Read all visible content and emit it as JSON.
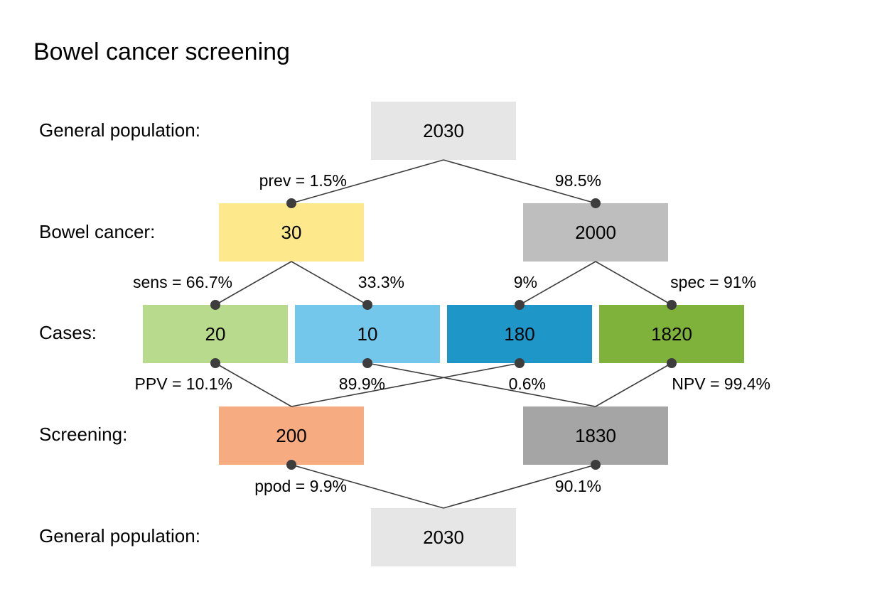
{
  "title": "Bowel cancer screening",
  "row_labels": {
    "general_population_top": "General population:",
    "bowel_cancer": "Bowel cancer:",
    "cases": "Cases:",
    "screening": "Screening:",
    "general_population_bottom": "General population:"
  },
  "boxes": {
    "population_top": {
      "value": "2030",
      "color": "#e6e6e6"
    },
    "cancer_yes": {
      "value": "30",
      "color": "#fde98b"
    },
    "cancer_no": {
      "value": "2000",
      "color": "#bebebe"
    },
    "case_hit": {
      "value": "20",
      "color": "#b8da8c"
    },
    "case_miss": {
      "value": "10",
      "color": "#72c7ea"
    },
    "case_false_alarm": {
      "value": "180",
      "color": "#1e96c8"
    },
    "case_correct_rejection": {
      "value": "1820",
      "color": "#7fb23a"
    },
    "screen_positive": {
      "value": "200",
      "color": "#f6ab80"
    },
    "screen_negative": {
      "value": "1830",
      "color": "#a5a5a5"
    },
    "population_bottom": {
      "value": "2030",
      "color": "#e6e6e6"
    }
  },
  "edge_labels": {
    "prev": "prev = 1.5%",
    "prev_complement": "98.5%",
    "sens": "sens = 66.7%",
    "sens_complement": "33.3%",
    "spec_complement": "9%",
    "spec": "spec = 91%",
    "ppv": "PPV = 10.1%",
    "ppv_complement": "89.9%",
    "npv_complement": "0.6%",
    "npv": "NPV = 99.4%",
    "ppod": "ppod = 9.9%",
    "ppod_complement": "90.1%"
  },
  "colors": {
    "link": "#3d3d3d",
    "dot": "#3d3d3d",
    "text": "#000000"
  }
}
